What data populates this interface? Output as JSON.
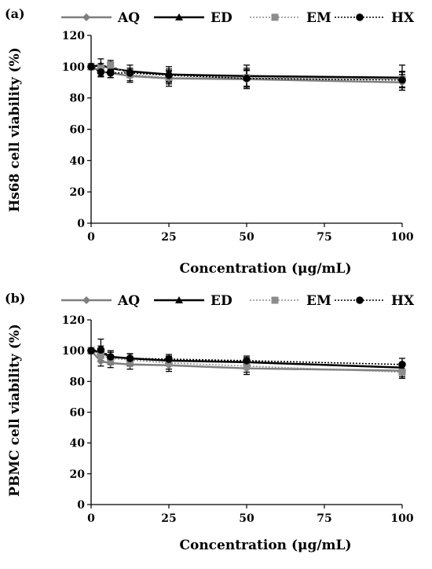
{
  "styles": {
    "AQ": {
      "color": "#7f7f7f",
      "dash": "",
      "marker": "diamond",
      "width": 2.5
    },
    "ED": {
      "color": "#000000",
      "dash": "",
      "marker": "triangle",
      "width": 2.5
    },
    "EM": {
      "color": "#8c8c8c",
      "dash": "2,2",
      "marker": "square",
      "width": 1.6
    },
    "HX": {
      "color": "#000000",
      "dash": "2,2",
      "marker": "circle",
      "width": 1.6
    }
  },
  "chart_data": [
    {
      "type": "line",
      "panel_label": "(a)",
      "xlabel": "Concentration (μg/mL)",
      "ylabel": "Hs68 cell viability (%)",
      "xlim": [
        0,
        100
      ],
      "ylim": [
        0,
        120
      ],
      "xticks": [
        0,
        25,
        50,
        75,
        100
      ],
      "yticks": [
        0,
        20,
        40,
        60,
        80,
        100,
        120
      ],
      "x": [
        0,
        3.125,
        6.25,
        12.5,
        25,
        50,
        100
      ],
      "legend_position": "top",
      "series": [
        {
          "name": "AQ",
          "values": [
            100,
            97,
            96,
            94,
            92.5,
            92,
            90
          ],
          "errors": [
            2,
            3,
            3,
            4,
            5,
            6,
            5
          ]
        },
        {
          "name": "ED",
          "values": [
            100,
            101,
            99,
            97,
            95,
            94,
            93
          ],
          "errors": [
            2,
            4,
            4,
            4,
            5,
            7,
            8
          ]
        },
        {
          "name": "EM",
          "values": [
            100,
            99,
            101,
            95,
            93,
            93,
            92
          ],
          "errors": [
            2,
            3,
            3,
            4,
            4,
            6,
            5
          ]
        },
        {
          "name": "HX",
          "values": [
            100,
            96.5,
            96,
            96,
            94.5,
            92.5,
            91.5
          ],
          "errors": [
            2,
            3,
            3,
            3,
            4,
            5,
            5
          ]
        }
      ]
    },
    {
      "type": "line",
      "panel_label": "(b)",
      "xlabel": "Concentration (μg/mL)",
      "ylabel": "PBMC cell viability (%)",
      "xlim": [
        0,
        100
      ],
      "ylim": [
        0,
        120
      ],
      "xticks": [
        0,
        25,
        50,
        75,
        100
      ],
      "yticks": [
        0,
        20,
        40,
        60,
        80,
        100,
        120
      ],
      "x": [
        0,
        3.125,
        6.25,
        12.5,
        25,
        50,
        100
      ],
      "legend_position": "top",
      "series": [
        {
          "name": "AQ",
          "values": [
            100,
            93,
            92,
            91,
            90.5,
            88.5,
            87
          ],
          "errors": [
            2,
            3,
            3,
            3,
            4,
            4,
            4
          ]
        },
        {
          "name": "ED",
          "values": [
            100,
            99,
            96,
            95,
            93.5,
            92.5,
            89
          ],
          "errors": [
            2,
            4,
            4,
            3,
            3,
            3,
            3
          ]
        },
        {
          "name": "EM",
          "values": [
            100,
            97,
            95,
            94,
            92,
            90,
            86
          ],
          "errors": [
            2,
            4,
            4,
            4,
            4,
            4,
            4
          ]
        },
        {
          "name": "HX",
          "values": [
            100,
            100.5,
            96,
            95,
            94.5,
            93.5,
            91
          ],
          "errors": [
            2,
            7,
            3,
            3,
            3,
            3,
            4
          ]
        }
      ]
    }
  ]
}
